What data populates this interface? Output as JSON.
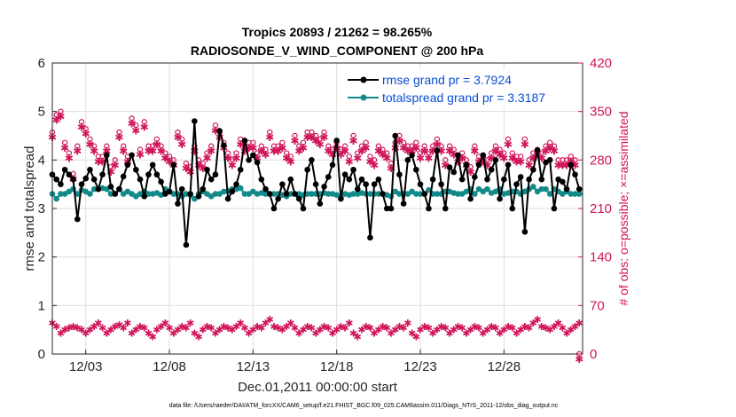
{
  "chart_data": {
    "type": "line",
    "title": "Tropics 20893 / 21262 = 98.265%",
    "subtitle": "RADIOSONDE_V_WIND_COMPONENT @ 200 hPa",
    "xlabel": "Dec.01,2011 00:00:00 start",
    "ylabel": "rmse and totalspread",
    "y2label": "# of obs: o=possible; ×=assimilated",
    "xlim": [
      1,
      32.7
    ],
    "ylim": [
      0,
      6
    ],
    "y2lim": [
      0,
      420
    ],
    "x_tick_values": [
      3,
      8,
      13,
      18,
      23,
      28
    ],
    "x_tick_labels": [
      "12/03",
      "12/08",
      "12/13",
      "12/18",
      "12/23",
      "12/28"
    ],
    "y_ticks": [
      0,
      1,
      2,
      3,
      4,
      5,
      6
    ],
    "y2_ticks": [
      0,
      70,
      140,
      210,
      280,
      350,
      420
    ],
    "legend": {
      "placement": "top-right",
      "entries": [
        "rmse grand pr = 3.7924",
        "totalspread grand pr = 3.3187"
      ]
    },
    "x": [
      1.0,
      1.25,
      1.5,
      1.75,
      2.0,
      2.25,
      2.5,
      2.75,
      3.0,
      3.25,
      3.5,
      3.75,
      4.0,
      4.25,
      4.5,
      4.75,
      5.0,
      5.25,
      5.5,
      5.75,
      6.0,
      6.25,
      6.5,
      6.75,
      7.0,
      7.25,
      7.5,
      7.75,
      8.0,
      8.25,
      8.5,
      8.75,
      9.0,
      9.25,
      9.5,
      9.75,
      10.0,
      10.25,
      10.5,
      10.75,
      11.0,
      11.25,
      11.5,
      11.75,
      12.0,
      12.25,
      12.5,
      12.75,
      13.0,
      13.25,
      13.5,
      13.75,
      14.0,
      14.25,
      14.5,
      14.75,
      15.0,
      15.25,
      15.5,
      15.75,
      16.0,
      16.25,
      16.5,
      16.75,
      17.0,
      17.25,
      17.5,
      17.75,
      18.0,
      18.25,
      18.5,
      18.75,
      19.0,
      19.25,
      19.5,
      19.75,
      20.0,
      20.25,
      20.5,
      20.75,
      21.0,
      21.25,
      21.5,
      21.75,
      22.0,
      22.25,
      22.5,
      22.75,
      23.0,
      23.25,
      23.5,
      23.75,
      24.0,
      24.25,
      24.5,
      24.75,
      25.0,
      25.25,
      25.5,
      25.75,
      26.0,
      26.25,
      26.5,
      26.75,
      27.0,
      27.25,
      27.5,
      27.75,
      28.0,
      28.25,
      28.5,
      28.75,
      29.0,
      29.25,
      29.5,
      29.75,
      30.0,
      30.25,
      30.5,
      30.75,
      31.0,
      31.25,
      31.5,
      31.75,
      32.0,
      32.25,
      32.5
    ],
    "series": [
      {
        "name": "rmse",
        "color": "#000000",
        "axis": "left",
        "values": [
          3.7,
          3.6,
          3.5,
          3.8,
          3.7,
          3.6,
          2.78,
          3.5,
          3.62,
          3.8,
          3.6,
          3.4,
          3.7,
          4.1,
          3.45,
          3.3,
          3.4,
          3.66,
          3.9,
          4.1,
          3.8,
          3.6,
          3.25,
          3.7,
          3.9,
          3.7,
          3.55,
          3.3,
          3.35,
          3.9,
          3.1,
          3.4,
          2.25,
          3.3,
          4.8,
          3.25,
          3.4,
          3.8,
          3.6,
          3.7,
          4.6,
          4.3,
          3.2,
          3.35,
          3.5,
          3.8,
          4.4,
          4.0,
          4.1,
          3.95,
          3.6,
          3.4,
          3.3,
          3.0,
          3.2,
          3.5,
          3.3,
          3.6,
          3.3,
          3.2,
          3.0,
          3.8,
          4.0,
          3.5,
          3.1,
          3.45,
          3.65,
          3.9,
          4.4,
          3.2,
          3.7,
          3.6,
          3.8,
          3.4,
          3.6,
          3.5,
          2.4,
          3.5,
          3.6,
          3.3,
          3.0,
          3.0,
          4.5,
          3.7,
          3.1,
          4.0,
          4.1,
          3.8,
          3.5,
          3.3,
          3.0,
          3.6,
          4.2,
          3.5,
          3.0,
          3.85,
          3.75,
          4.1,
          3.6,
          3.9,
          3.2,
          3.65,
          3.9,
          4.1,
          3.6,
          3.8,
          4.0,
          3.2,
          3.6,
          3.9,
          3.0,
          3.5,
          3.65,
          2.52,
          3.6,
          3.8,
          4.2,
          3.6,
          3.95,
          4.0,
          3.0,
          3.6,
          3.55,
          3.4,
          3.9,
          3.7,
          3.4
        ],
        "grand_pr": 3.7924
      },
      {
        "name": "totalspread",
        "color": "#138a8a",
        "axis": "left",
        "values": [
          3.3,
          3.2,
          3.3,
          3.3,
          3.35,
          3.4,
          3.3,
          3.38,
          3.35,
          3.3,
          3.4,
          3.4,
          3.42,
          3.4,
          3.3,
          3.3,
          3.4,
          3.3,
          3.35,
          3.3,
          3.25,
          3.3,
          3.35,
          3.3,
          3.3,
          3.32,
          3.28,
          3.4,
          3.35,
          3.3,
          3.3,
          3.25,
          3.3,
          3.28,
          3.2,
          3.3,
          3.35,
          3.3,
          3.25,
          3.3,
          3.3,
          3.35,
          3.36,
          3.4,
          3.4,
          3.42,
          3.3,
          3.3,
          3.35,
          3.3,
          3.32,
          3.3,
          3.3,
          3.3,
          3.3,
          3.28,
          3.25,
          3.3,
          3.3,
          3.3,
          3.28,
          3.3,
          3.3,
          3.3,
          3.3,
          3.32,
          3.3,
          3.3,
          3.28,
          3.25,
          3.3,
          3.28,
          3.3,
          3.3,
          3.32,
          3.3,
          3.3,
          3.3,
          3.3,
          3.3,
          3.28,
          3.25,
          3.35,
          3.3,
          3.3,
          3.3,
          3.35,
          3.3,
          3.3,
          3.3,
          3.38,
          3.3,
          3.3,
          3.3,
          3.35,
          3.35,
          3.32,
          3.3,
          3.3,
          3.35,
          3.4,
          3.3,
          3.4,
          3.35,
          3.4,
          3.32,
          3.35,
          3.4,
          3.3,
          3.32,
          3.35,
          3.35,
          3.3,
          3.35,
          3.4,
          3.45,
          3.35,
          3.4,
          3.4,
          3.3,
          3.4,
          3.35,
          3.3,
          3.35,
          3.3,
          3.3,
          3.3
        ],
        "grand_pr": 3.3187
      },
      {
        "name": "# of obs possible",
        "color": "#d0145a",
        "axis": "right",
        "marker": "o",
        "values": [
          320,
          345,
          350,
          305,
          290,
          260,
          300,
          335,
          325,
          310,
          300,
          285,
          285,
          300,
          270,
          280,
          320,
          300,
          285,
          340,
          330,
          295,
          335,
          300,
          300,
          310,
          300,
          290,
          285,
          280,
          320,
          310,
          275,
          270,
          300,
          280,
          275,
          290,
          300,
          330,
          320,
          305,
          290,
          280,
          290,
          310,
          300,
          305,
          305,
          290,
          300,
          295,
          320,
          300,
          300,
          305,
          290,
          285,
          315,
          300,
          305,
          320,
          320,
          315,
          310,
          320,
          300,
          295,
          305,
          295,
          300,
          285,
          315,
          290,
          300,
          305,
          285,
          280,
          300,
          295,
          290,
          275,
          305,
          315,
          305,
          300,
          300,
          305,
          290,
          300,
          290,
          300,
          310,
          300,
          280,
          300,
          295,
          285,
          290,
          280,
          270,
          300,
          285,
          285,
          280,
          290,
          300,
          295,
          290,
          310,
          290,
          285,
          285,
          310,
          280,
          290,
          295,
          290,
          300,
          305,
          300,
          280,
          280,
          280,
          285,
          280,
          0
        ],
        "cluster": [
          45,
          40,
          30,
          35,
          38,
          40,
          38,
          35,
          30,
          35,
          40,
          45,
          38,
          30,
          35,
          40,
          42,
          38,
          45,
          30,
          35,
          40,
          38,
          30,
          25,
          35,
          40,
          45,
          38,
          30,
          35,
          40,
          38,
          45,
          30,
          25,
          35,
          40,
          38,
          30,
          35,
          40,
          38,
          35,
          40,
          45,
          38,
          30,
          35,
          40,
          38,
          45,
          50,
          40,
          38,
          35,
          40,
          45,
          38,
          30,
          35,
          40,
          38,
          30,
          35,
          40,
          38,
          30,
          35,
          40,
          38,
          45,
          30,
          25,
          35,
          40,
          38,
          30,
          35,
          40,
          38,
          30,
          35,
          40,
          38,
          45,
          30,
          25,
          35,
          40,
          38,
          30,
          35,
          40,
          38,
          30,
          35,
          40,
          38,
          30,
          35,
          40,
          38,
          30,
          35,
          40,
          38,
          30,
          35,
          40,
          38,
          30,
          35,
          40,
          38,
          45,
          50,
          40,
          38,
          35,
          40,
          45,
          38,
          30,
          35,
          40,
          45
        ]
      }
    ]
  },
  "footer_note": "data file: /Users/raeder/DAI/ATM_forcXX/CAM6_setup/f.e21.FHIST_BGC.f09_025.CAM6assim.011/Diags_NTrS_2011-12/obs_diag_output.nc"
}
